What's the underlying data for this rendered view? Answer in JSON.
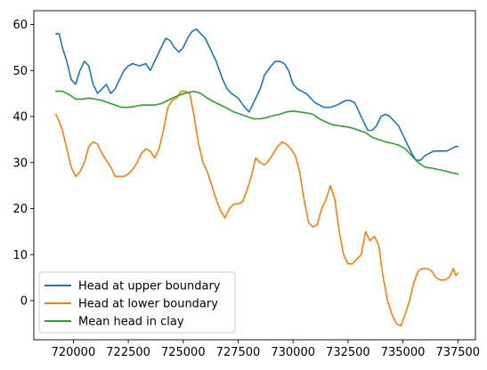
{
  "chart_data": {
    "type": "line",
    "title": "",
    "xlabel": "",
    "ylabel": "",
    "xlim": [
      718200,
      738300
    ],
    "ylim": [
      -8.5,
      63
    ],
    "x_ticks": [
      720000,
      722500,
      725000,
      727500,
      730000,
      732500,
      735000,
      737500
    ],
    "y_ticks": [
      0,
      10,
      20,
      30,
      40,
      50,
      60
    ],
    "x_tick_labels": [
      "720000",
      "722500",
      "725000",
      "727500",
      "730000",
      "732500",
      "735000",
      "737500"
    ],
    "y_tick_labels": [
      "0",
      "10",
      "20",
      "30",
      "40",
      "50",
      "60"
    ],
    "grid": false,
    "legend_position": "lower-left",
    "series": [
      {
        "name": "Head at upper boundary",
        "color": "#1f77b4",
        "x": [
          719200,
          719350,
          719500,
          719700,
          719900,
          720100,
          720300,
          720500,
          720700,
          720900,
          721100,
          721300,
          721500,
          721700,
          721900,
          722100,
          722300,
          722500,
          722700,
          723000,
          723300,
          723500,
          723700,
          724000,
          724200,
          724400,
          724600,
          724800,
          725000,
          725200,
          725400,
          725600,
          725800,
          726000,
          726200,
          726500,
          726800,
          727000,
          727200,
          727500,
          727800,
          728000,
          728200,
          728500,
          728700,
          729000,
          729200,
          729400,
          729600,
          729800,
          730000,
          730200,
          730400,
          730600,
          730800,
          731000,
          731200,
          731400,
          731700,
          732000,
          732200,
          732400,
          732600,
          732800,
          733000,
          733200,
          733400,
          733600,
          733800,
          734000,
          734200,
          734400,
          734600,
          734800,
          735000,
          735200,
          735400,
          735600,
          735800,
          736000,
          736200,
          736400,
          736600,
          736800,
          737000,
          737200,
          737400,
          737500
        ],
        "values": [
          58,
          58,
          55,
          52,
          48,
          47,
          50,
          52,
          51,
          47,
          45,
          46,
          47,
          45,
          46,
          48,
          50,
          51,
          51.5,
          51,
          51.5,
          50,
          52,
          55,
          57,
          56.5,
          55,
          54,
          55,
          57,
          58.5,
          59,
          58,
          57,
          55,
          52,
          48,
          46,
          45,
          44,
          42,
          41,
          43,
          46,
          49,
          51,
          52,
          52,
          51.5,
          50,
          47,
          46,
          45.5,
          45,
          44,
          43,
          42.5,
          42,
          42,
          42.5,
          43,
          43.5,
          43.5,
          43,
          41,
          39,
          37,
          37,
          38,
          40,
          40.5,
          40,
          39,
          38,
          36,
          34,
          32,
          30.5,
          30.5,
          31.5,
          32,
          32.5,
          32.5,
          32.5,
          32.5,
          33,
          33.5,
          33.5
        ]
      },
      {
        "name": "Head at lower boundary",
        "color": "#ff7f0e",
        "x": [
          719200,
          719350,
          719500,
          719700,
          719900,
          720100,
          720300,
          720500,
          720700,
          720900,
          721100,
          721300,
          721500,
          721700,
          721900,
          722100,
          722300,
          722500,
          722700,
          722900,
          723100,
          723300,
          723500,
          723700,
          723900,
          724100,
          724300,
          724500,
          724700,
          724900,
          725100,
          725300,
          725500,
          725700,
          725900,
          726100,
          726300,
          726500,
          726700,
          726900,
          727100,
          727300,
          727500,
          727700,
          727900,
          728100,
          728300,
          728500,
          728700,
          728900,
          729100,
          729300,
          729500,
          729700,
          729900,
          730100,
          730300,
          730500,
          730700,
          730900,
          731100,
          731300,
          731500,
          731700,
          731900,
          732100,
          732300,
          732500,
          732700,
          732900,
          733100,
          733300,
          733500,
          733700,
          733900,
          734100,
          734300,
          734500,
          734700,
          734900,
          735100,
          735300,
          735500,
          735700,
          735900,
          736100,
          736300,
          736500,
          736700,
          736900,
          737100,
          737300,
          737400,
          737500
        ],
        "values": [
          40.5,
          39,
          37,
          33,
          29,
          27,
          28,
          30,
          33.5,
          34.5,
          34,
          32,
          30.5,
          29,
          27,
          27,
          27,
          27.5,
          28.5,
          30,
          32,
          33,
          32.5,
          31,
          33,
          37,
          42,
          43.5,
          44,
          45.5,
          45.5,
          45,
          40,
          34,
          30,
          28,
          25,
          22,
          19.5,
          18,
          20,
          21,
          21,
          21.5,
          24,
          27,
          31,
          30,
          29.5,
          30.5,
          32,
          33.5,
          34.5,
          34,
          33,
          31.5,
          28,
          22,
          17,
          16,
          16.5,
          20,
          22,
          25,
          22,
          15,
          10,
          8,
          8,
          9,
          10,
          15,
          13,
          14,
          12,
          5,
          0,
          -3,
          -5,
          -5.5,
          -3,
          0,
          4,
          6.5,
          7,
          7,
          6.5,
          5,
          4.5,
          4.5,
          5,
          7,
          5.5,
          6
        ]
      },
      {
        "name": "Mean head in clay",
        "color": "#2ca02c",
        "x": [
          719200,
          719500,
          719800,
          720100,
          720400,
          720700,
          721000,
          721300,
          721600,
          721900,
          722200,
          722500,
          722800,
          723100,
          723400,
          723700,
          724000,
          724300,
          724600,
          724900,
          725200,
          725500,
          725800,
          726100,
          726400,
          726700,
          727000,
          727300,
          727600,
          727900,
          728200,
          728500,
          728800,
          729100,
          729400,
          729700,
          730000,
          730300,
          730600,
          730900,
          731200,
          731500,
          731800,
          732100,
          732400,
          732700,
          733000,
          733300,
          733600,
          733900,
          734200,
          734500,
          734800,
          735100,
          735400,
          735700,
          736000,
          736300,
          736600,
          736900,
          737200,
          737500
        ],
        "values": [
          45.5,
          45.5,
          44.8,
          43.8,
          43.8,
          44,
          43.8,
          43.5,
          43,
          42.5,
          42,
          42,
          42.2,
          42.5,
          42.5,
          42.5,
          42.8,
          43.5,
          44.2,
          44.8,
          45.2,
          45.5,
          45,
          44,
          43.2,
          42.5,
          41.8,
          41,
          40.5,
          40,
          39.5,
          39.5,
          39.8,
          40.2,
          40.5,
          41,
          41.2,
          41,
          40.8,
          40.5,
          39.5,
          38.8,
          38.2,
          38,
          37.8,
          37.5,
          37,
          36.5,
          35.5,
          35,
          34.5,
          34.2,
          33.8,
          33,
          31.5,
          30,
          29,
          28.8,
          28.5,
          28.2,
          27.8,
          27.5
        ]
      }
    ]
  }
}
